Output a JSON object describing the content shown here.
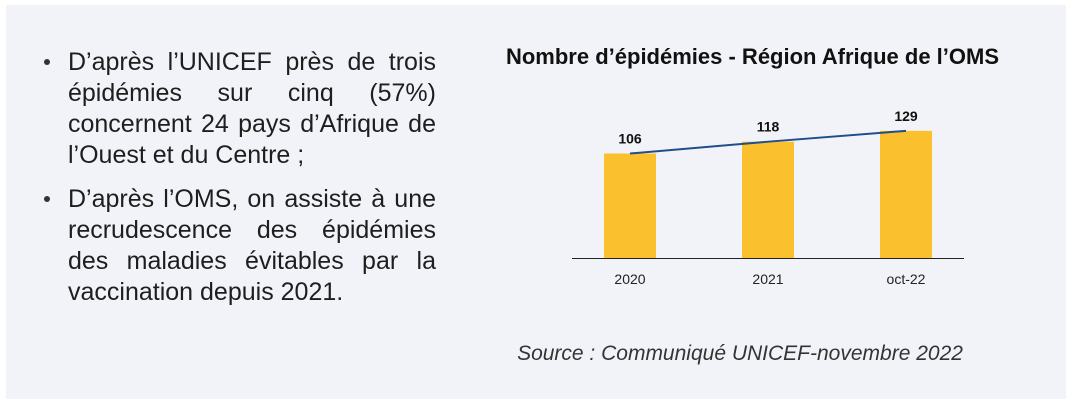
{
  "bullets": [
    "D’après l’UNICEF près de trois épidémies sur cinq (57%) concernent 24 pays d’Afrique de l’Ouest et du Centre ;",
    "D’après l’OMS, on assiste à une recrudescence des épidémies des maladies évitables par la vaccination depuis 2021."
  ],
  "source": "Source : Communiqué UNICEF-novembre 2022",
  "colors": {
    "bar": "#fbc02d",
    "line": "#1f4e8c",
    "panel": "#f2f3f8"
  },
  "chart_data": {
    "type": "bar",
    "title": "Nombre d’épidémies - Région Afrique de l’OMS",
    "xlabel": "",
    "ylabel": "",
    "categories": [
      "2020",
      "2021",
      "oct-22"
    ],
    "series": [
      {
        "values": [
          106,
          118,
          129
        ]
      }
    ],
    "trendline": true,
    "data_labels": true,
    "grid": false,
    "ylim": [
      0,
      140
    ]
  }
}
